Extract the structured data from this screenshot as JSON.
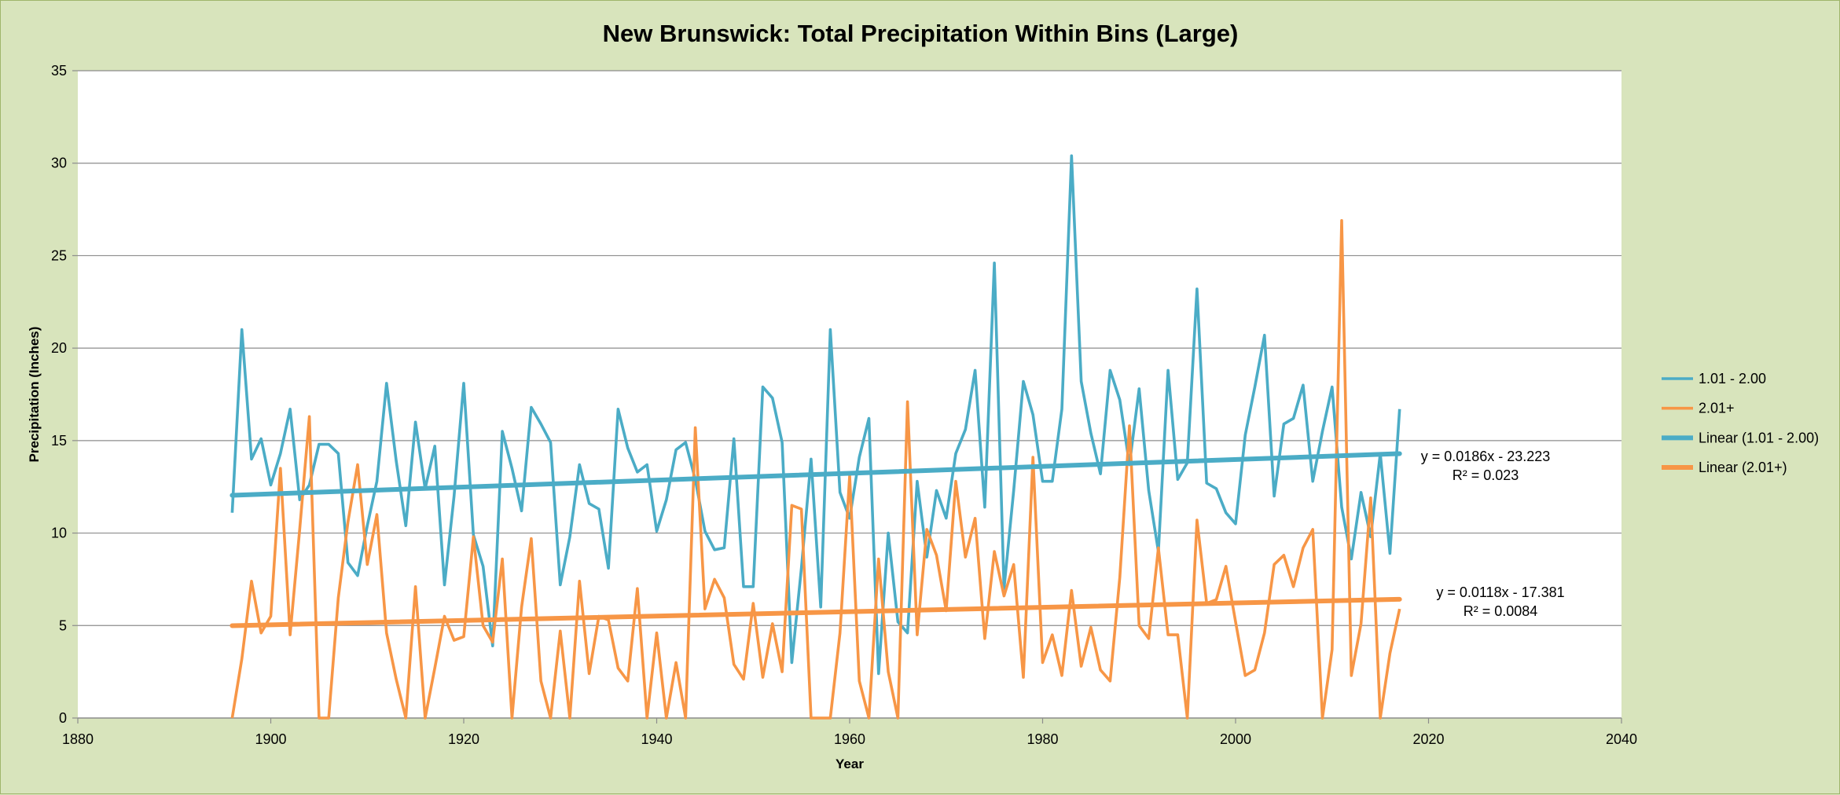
{
  "chart_data": {
    "type": "line",
    "title": "New Brunswick: Total Precipitation Within Bins (Large)",
    "xlabel": "Year",
    "ylabel": "Precipitation (Inches)",
    "xlim": [
      1880,
      2040
    ],
    "ylim": [
      0,
      35
    ],
    "x_ticks": [
      "1880",
      "1900",
      "1920",
      "1940",
      "1960",
      "1980",
      "2000",
      "2020",
      "2040"
    ],
    "y_ticks": [
      "0",
      "5",
      "10",
      "15",
      "20",
      "25",
      "30",
      "35"
    ],
    "grid": "horizontal",
    "legend_position": "right",
    "x": [
      1896,
      1897,
      1898,
      1899,
      1900,
      1901,
      1902,
      1903,
      1904,
      1905,
      1906,
      1907,
      1908,
      1909,
      1910,
      1911,
      1912,
      1913,
      1914,
      1915,
      1916,
      1917,
      1918,
      1919,
      1920,
      1921,
      1922,
      1923,
      1924,
      1925,
      1926,
      1927,
      1928,
      1929,
      1930,
      1931,
      1932,
      1933,
      1934,
      1935,
      1936,
      1937,
      1938,
      1939,
      1940,
      1941,
      1942,
      1943,
      1944,
      1945,
      1946,
      1947,
      1948,
      1949,
      1950,
      1951,
      1952,
      1953,
      1954,
      1955,
      1956,
      1957,
      1958,
      1959,
      1960,
      1961,
      1962,
      1963,
      1964,
      1965,
      1966,
      1967,
      1968,
      1969,
      1970,
      1971,
      1972,
      1973,
      1974,
      1975,
      1976,
      1977,
      1978,
      1979,
      1980,
      1981,
      1982,
      1983,
      1984,
      1985,
      1986,
      1987,
      1988,
      1989,
      1990,
      1991,
      1992,
      1993,
      1994,
      1995,
      1996,
      1997,
      1998,
      1999,
      2000,
      2001,
      2002,
      2003,
      2004,
      2005,
      2006,
      2007,
      2008,
      2009,
      2010,
      2011,
      2012,
      2013,
      2014,
      2015,
      2016,
      2017
    ],
    "series": [
      {
        "name": "1.01 - 2.00",
        "color": "#4bacc6",
        "values": [
          11.1,
          21.0,
          14.0,
          15.1,
          12.6,
          14.3,
          16.7,
          11.8,
          12.6,
          14.8,
          14.8,
          14.3,
          8.4,
          7.7,
          10.4,
          12.8,
          18.1,
          13.9,
          10.4,
          16.0,
          12.4,
          14.7,
          7.2,
          12.0,
          18.1,
          9.9,
          8.2,
          3.9,
          15.5,
          13.5,
          11.2,
          16.8,
          15.9,
          14.9,
          7.2,
          9.8,
          13.7,
          11.6,
          11.3,
          8.1,
          16.7,
          14.6,
          13.3,
          13.7,
          10.1,
          11.8,
          14.5,
          14.9,
          12.9,
          10.1,
          9.1,
          9.2,
          15.1,
          7.1,
          7.1,
          17.9,
          17.3,
          14.9,
          3.0,
          8.1,
          14.0,
          6.0,
          21.0,
          12.2,
          10.8,
          14.1,
          16.2,
          2.4,
          10.0,
          5.2,
          4.6,
          12.8,
          8.7,
          12.3,
          10.8,
          14.3,
          15.6,
          18.8,
          11.4,
          24.6,
          7.0,
          12.3,
          18.2,
          16.4,
          12.8,
          12.8,
          16.7,
          30.4,
          18.2,
          15.4,
          13.2,
          18.8,
          17.2,
          13.7,
          17.8,
          12.3,
          9.0,
          18.8,
          12.9,
          13.8,
          23.2,
          12.7,
          12.4,
          11.1,
          10.5,
          15.3,
          17.9,
          20.7,
          12.0,
          15.9,
          16.2,
          18.0,
          12.8,
          15.5,
          17.9,
          11.4,
          8.6,
          12.2,
          9.8,
          14.3,
          8.9,
          16.7
        ]
      },
      {
        "name": "2.01+",
        "color": "#f79646",
        "values": [
          0.0,
          3.2,
          7.4,
          4.6,
          5.5,
          13.5,
          4.5,
          10.2,
          16.3,
          0.0,
          0.0,
          6.5,
          10.6,
          13.7,
          8.3,
          11.0,
          4.6,
          2.1,
          0.0,
          7.1,
          0.0,
          2.7,
          5.5,
          4.2,
          4.4,
          9.8,
          5.0,
          4.1,
          8.6,
          0.0,
          6.0,
          9.7,
          2.0,
          0.0,
          4.7,
          0.0,
          7.4,
          2.4,
          5.5,
          5.3,
          2.7,
          2.0,
          7.0,
          0.0,
          4.6,
          0.0,
          3.0,
          0.0,
          15.7,
          5.9,
          7.5,
          6.5,
          2.9,
          2.1,
          6.2,
          2.2,
          5.1,
          2.5,
          11.5,
          11.3,
          0.0,
          0.0,
          0.0,
          4.6,
          13.1,
          2.0,
          0.0,
          8.6,
          2.5,
          0.0,
          17.1,
          4.5,
          10.2,
          8.8,
          5.8,
          12.8,
          8.7,
          10.8,
          4.3,
          9.0,
          6.6,
          8.3,
          2.2,
          14.1,
          3.0,
          4.5,
          2.3,
          6.9,
          2.8,
          4.9,
          2.6,
          2.0,
          7.6,
          15.8,
          5.0,
          4.3,
          9.2,
          4.5,
          4.5,
          0.0,
          10.7,
          6.2,
          6.4,
          8.2,
          5.2,
          2.3,
          2.6,
          4.6,
          8.3,
          8.8,
          7.1,
          9.2,
          10.2,
          0.0,
          3.7,
          26.9,
          2.3,
          5.1,
          11.9,
          0.0,
          3.5,
          5.9
        ]
      }
    ],
    "trendlines": [
      {
        "name": "Linear (1.01 - 2.00)",
        "color": "#4bacc6",
        "slope": 0.0186,
        "intercept": -23.223,
        "equation": "y = 0.0186x - 23.223",
        "r2": "R² = 0.023"
      },
      {
        "name": "Linear (2.01+)",
        "color": "#f79646",
        "slope": 0.0118,
        "intercept": -17.381,
        "equation": "y = 0.0118x - 17.381",
        "r2": "R² = 0.0084"
      }
    ]
  }
}
